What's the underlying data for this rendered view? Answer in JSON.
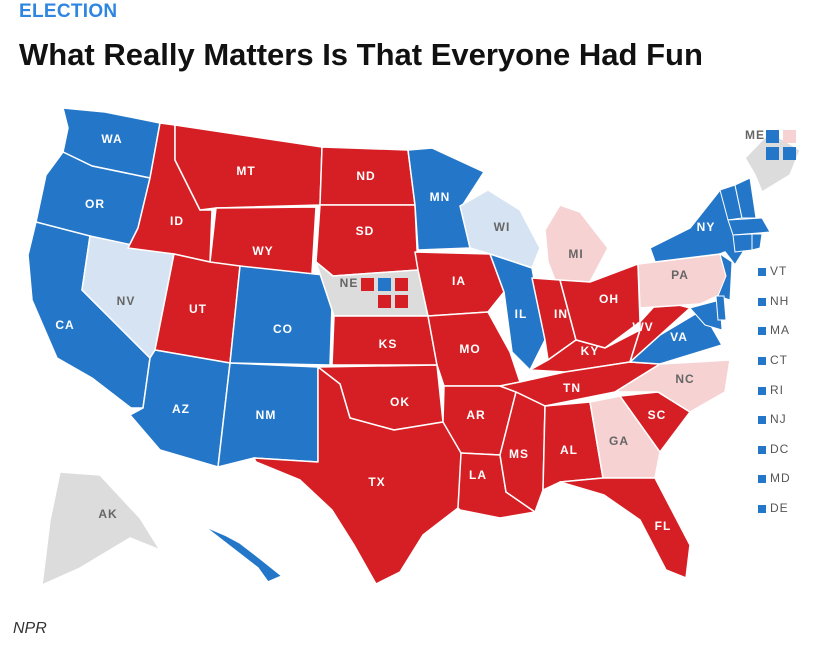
{
  "header": {
    "kicker": "ELECTION",
    "title": "What Really Matters Is That Everyone Had Fun"
  },
  "credit": "NPR",
  "colors": {
    "solid_dem": "#2477c8",
    "lean_dem": "#d5e3f2",
    "solid_rep": "#d61f24",
    "lean_rep": "#f7d2d2",
    "no_data": "#dcdcdc"
  },
  "states": [
    {
      "abbr": "WA",
      "status": "solid_dem"
    },
    {
      "abbr": "OR",
      "status": "solid_dem"
    },
    {
      "abbr": "CA",
      "status": "solid_dem"
    },
    {
      "abbr": "NV",
      "status": "lean_dem"
    },
    {
      "abbr": "ID",
      "status": "solid_rep"
    },
    {
      "abbr": "MT",
      "status": "solid_rep"
    },
    {
      "abbr": "WY",
      "status": "solid_rep"
    },
    {
      "abbr": "UT",
      "status": "solid_rep"
    },
    {
      "abbr": "CO",
      "status": "solid_dem"
    },
    {
      "abbr": "AZ",
      "status": "solid_dem"
    },
    {
      "abbr": "NM",
      "status": "solid_dem"
    },
    {
      "abbr": "ND",
      "status": "solid_rep"
    },
    {
      "abbr": "SD",
      "status": "solid_rep"
    },
    {
      "abbr": "NE",
      "status": "no_data"
    },
    {
      "abbr": "KS",
      "status": "solid_rep"
    },
    {
      "abbr": "OK",
      "status": "solid_rep"
    },
    {
      "abbr": "TX",
      "status": "solid_rep"
    },
    {
      "abbr": "MN",
      "status": "solid_dem"
    },
    {
      "abbr": "IA",
      "status": "solid_rep"
    },
    {
      "abbr": "MO",
      "status": "solid_rep"
    },
    {
      "abbr": "AR",
      "status": "solid_rep"
    },
    {
      "abbr": "LA",
      "status": "solid_rep"
    },
    {
      "abbr": "WI",
      "status": "lean_dem"
    },
    {
      "abbr": "IL",
      "status": "solid_dem"
    },
    {
      "abbr": "MI",
      "status": "lean_rep"
    },
    {
      "abbr": "IN",
      "status": "solid_rep"
    },
    {
      "abbr": "OH",
      "status": "solid_rep"
    },
    {
      "abbr": "KY",
      "status": "solid_rep"
    },
    {
      "abbr": "TN",
      "status": "solid_rep"
    },
    {
      "abbr": "MS",
      "status": "solid_rep"
    },
    {
      "abbr": "AL",
      "status": "solid_rep"
    },
    {
      "abbr": "GA",
      "status": "lean_rep"
    },
    {
      "abbr": "FL",
      "status": "solid_rep"
    },
    {
      "abbr": "SC",
      "status": "solid_rep"
    },
    {
      "abbr": "NC",
      "status": "lean_rep"
    },
    {
      "abbr": "VA",
      "status": "solid_dem"
    },
    {
      "abbr": "WV",
      "status": "solid_rep"
    },
    {
      "abbr": "PA",
      "status": "lean_rep"
    },
    {
      "abbr": "NY",
      "status": "solid_dem"
    },
    {
      "abbr": "ME",
      "status": "no_data"
    },
    {
      "abbr": "AK",
      "status": "no_data"
    },
    {
      "abbr": "HI",
      "status": "solid_dem"
    }
  ],
  "small_states": [
    {
      "abbr": "VT",
      "status": "solid_dem"
    },
    {
      "abbr": "NH",
      "status": "solid_dem"
    },
    {
      "abbr": "MA",
      "status": "solid_dem"
    },
    {
      "abbr": "CT",
      "status": "solid_dem"
    },
    {
      "abbr": "RI",
      "status": "solid_dem"
    },
    {
      "abbr": "NJ",
      "status": "solid_dem"
    },
    {
      "abbr": "DC",
      "status": "solid_dem"
    },
    {
      "abbr": "MD",
      "status": "solid_dem"
    },
    {
      "abbr": "DE",
      "status": "solid_dem"
    }
  ],
  "district_boxes": {
    "ME": [
      "solid_dem",
      "lean_rep",
      "solid_dem",
      "solid_dem"
    ],
    "NE": [
      "solid_rep",
      "solid_dem",
      "solid_rep",
      "solid_rep",
      "solid_rep"
    ]
  }
}
